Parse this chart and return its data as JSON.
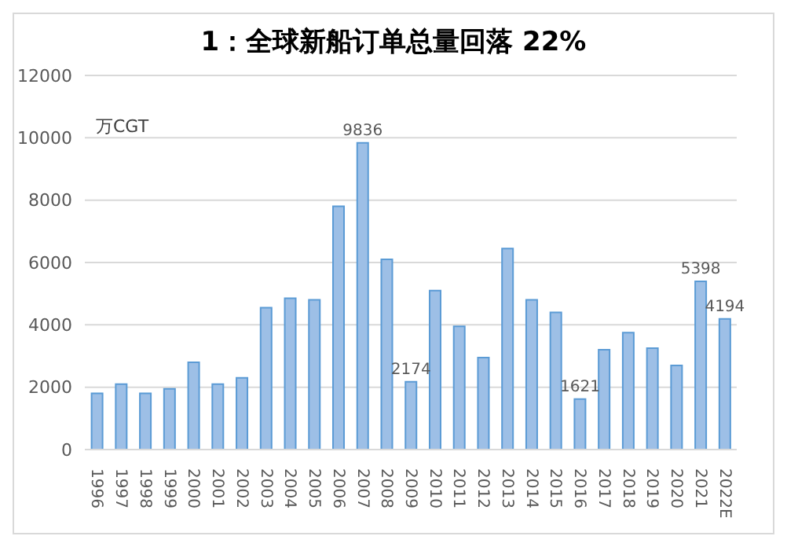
{
  "chart_data": {
    "type": "bar",
    "title": "1：全球新船订单总量回落 22%",
    "annotations": [
      "万CGT"
    ],
    "categories": [
      "1996",
      "1997",
      "1998",
      "1999",
      "2000",
      "2001",
      "2002",
      "2003",
      "2004",
      "2005",
      "2006",
      "2007",
      "2008",
      "2009",
      "2010",
      "2011",
      "2012",
      "2013",
      "2014",
      "2015",
      "2016",
      "2017",
      "2018",
      "2019",
      "2020",
      "2021",
      "2022E"
    ],
    "values": [
      1800,
      2100,
      1800,
      1950,
      2800,
      2100,
      2300,
      4550,
      4850,
      4800,
      7800,
      9836,
      6100,
      2174,
      5100,
      3950,
      2950,
      6450,
      4800,
      4400,
      1621,
      3200,
      3750,
      3250,
      2700,
      5398,
      4194
    ],
    "value_labels": [
      null,
      null,
      null,
      null,
      null,
      null,
      null,
      null,
      null,
      null,
      null,
      "9836",
      null,
      "2174",
      null,
      null,
      null,
      null,
      null,
      null,
      "1621",
      null,
      null,
      null,
      null,
      "5398",
      "4194"
    ],
    "color": "#9dbfe6",
    "ylim": [
      0,
      12000
    ],
    "yticks": [
      0,
      2000,
      4000,
      6000,
      8000,
      10000,
      12000
    ],
    "grid": "y"
  }
}
